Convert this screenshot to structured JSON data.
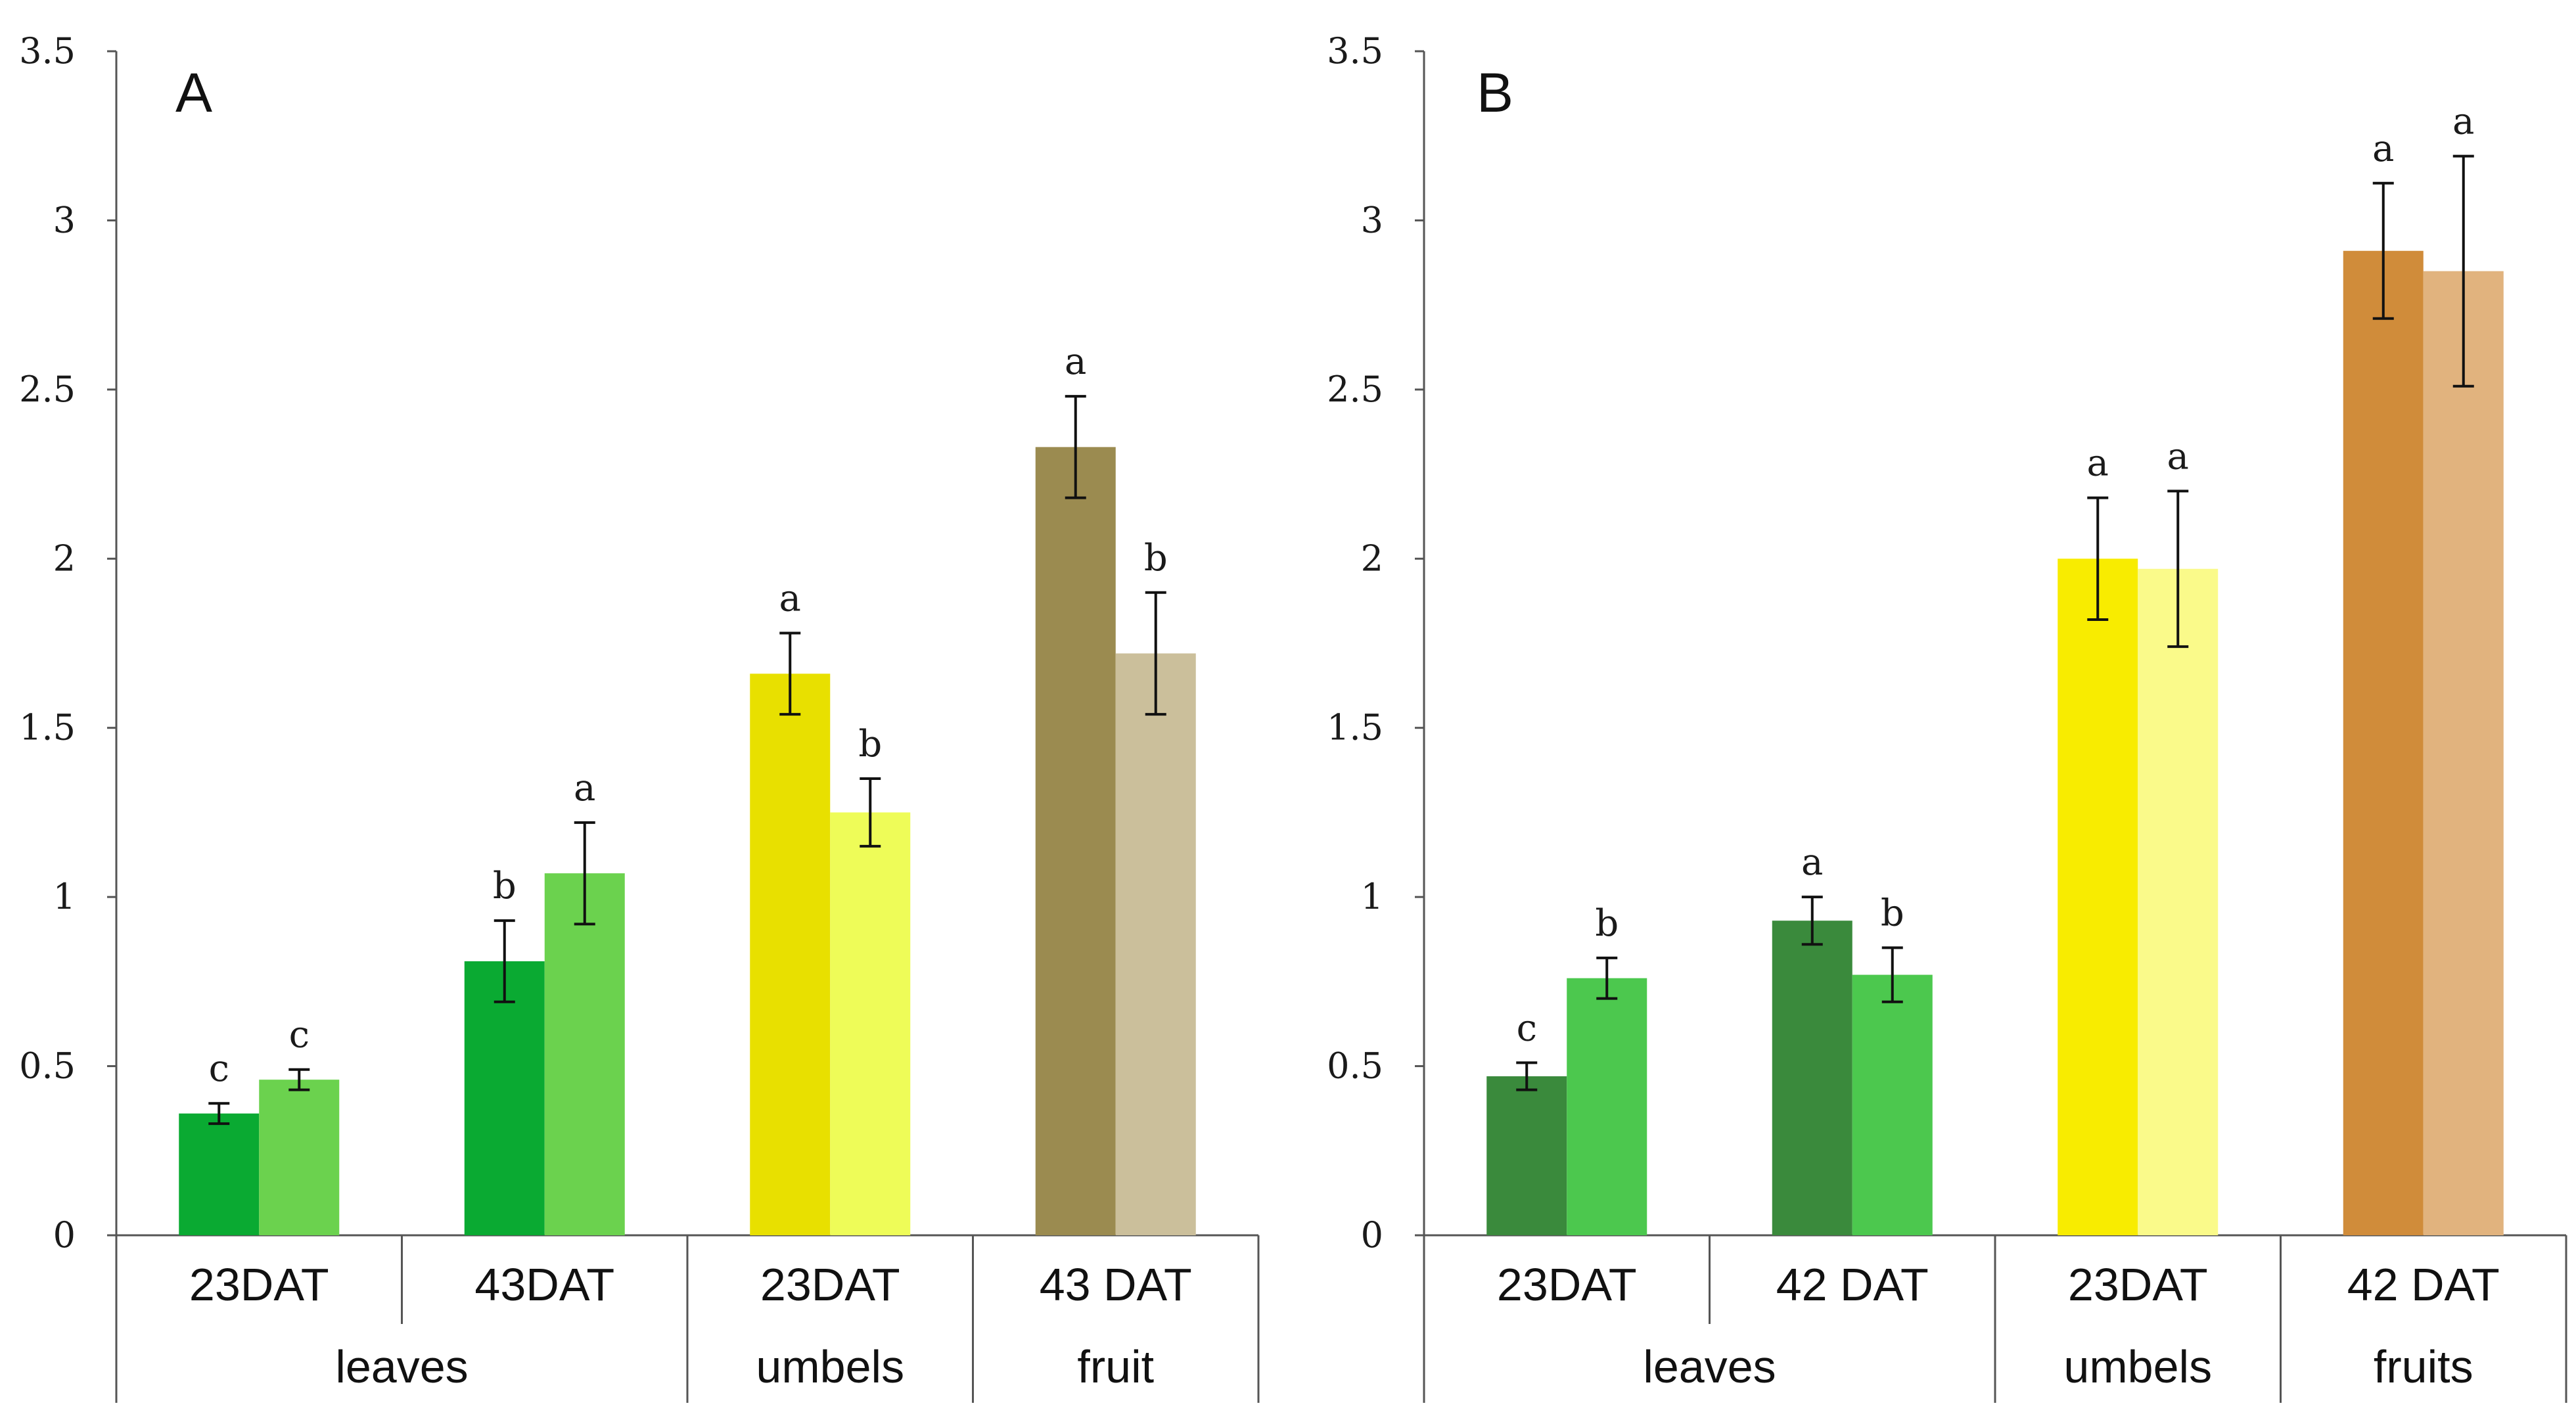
{
  "chart_data": [
    {
      "type": "bar",
      "panel_label": "A",
      "ylim": [
        0,
        3.5
      ],
      "yticks": [
        "0",
        "0.5",
        "1",
        "1.5",
        "2",
        "2.5",
        "3",
        "3.5"
      ],
      "categories": [
        "23DAT",
        "43DAT",
        "23DAT",
        "43 DAT"
      ],
      "groups": [
        "leaves",
        "umbels",
        "fruit"
      ],
      "group_spans": [
        2,
        1,
        1
      ],
      "bars": [
        {
          "value": 0.36,
          "err": 0.03,
          "sig": "c",
          "color": "#0aaa32"
        },
        {
          "value": 0.46,
          "err": 0.03,
          "sig": "c",
          "color": "#6bd24e"
        },
        {
          "value": 0.81,
          "err": 0.12,
          "sig": "b",
          "color": "#0aaa32"
        },
        {
          "value": 1.07,
          "err": 0.15,
          "sig": "a",
          "color": "#6bd24e"
        },
        {
          "value": 1.66,
          "err": 0.12,
          "sig": "a",
          "color": "#e8e000"
        },
        {
          "value": 1.25,
          "err": 0.1,
          "sig": "b",
          "color": "#eefc58"
        },
        {
          "value": 2.33,
          "err": 0.15,
          "sig": "a",
          "color": "#9b8b50"
        },
        {
          "value": 1.72,
          "err": 0.18,
          "sig": "b",
          "color": "#cbbf9b"
        }
      ]
    },
    {
      "type": "bar",
      "panel_label": "B",
      "ylim": [
        0,
        3.5
      ],
      "yticks": [
        "0",
        "0.5",
        "1",
        "1.5",
        "2",
        "2.5",
        "3",
        "3.5"
      ],
      "categories": [
        "23DAT",
        "42 DAT",
        "23DAT",
        "42 DAT"
      ],
      "groups": [
        "leaves",
        "umbels",
        "fruits"
      ],
      "group_spans": [
        2,
        1,
        1
      ],
      "bars": [
        {
          "value": 0.47,
          "err": 0.04,
          "sig": "c",
          "color": "#3a8a3c"
        },
        {
          "value": 0.76,
          "err": 0.06,
          "sig": "b",
          "color": "#4cc84e"
        },
        {
          "value": 0.93,
          "err": 0.07,
          "sig": "a",
          "color": "#3a8a3c"
        },
        {
          "value": 0.77,
          "err": 0.08,
          "sig": "b",
          "color": "#4cc84e"
        },
        {
          "value": 2.0,
          "err": 0.18,
          "sig": "a",
          "color": "#f8ec00"
        },
        {
          "value": 1.97,
          "err": 0.23,
          "sig": "a",
          "color": "#fafa8a"
        },
        {
          "value": 2.91,
          "err": 0.2,
          "sig": "a",
          "color": "#d08c3a"
        },
        {
          "value": 2.85,
          "err": 0.34,
          "sig": "a",
          "color": "#e1b37e"
        }
      ]
    }
  ]
}
